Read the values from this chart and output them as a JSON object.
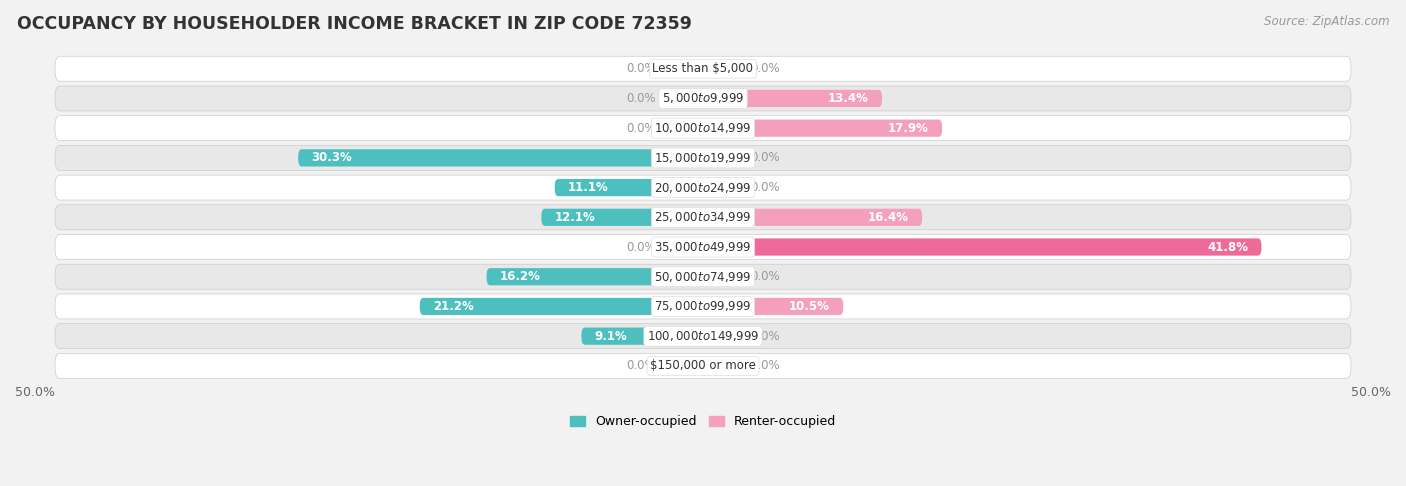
{
  "title": "OCCUPANCY BY HOUSEHOLDER INCOME BRACKET IN ZIP CODE 72359",
  "source": "Source: ZipAtlas.com",
  "categories": [
    "Less than $5,000",
    "$5,000 to $9,999",
    "$10,000 to $14,999",
    "$15,000 to $19,999",
    "$20,000 to $24,999",
    "$25,000 to $34,999",
    "$35,000 to $49,999",
    "$50,000 to $74,999",
    "$75,000 to $99,999",
    "$100,000 to $149,999",
    "$150,000 or more"
  ],
  "owner_values": [
    0.0,
    0.0,
    0.0,
    30.3,
    11.1,
    12.1,
    0.0,
    16.2,
    21.2,
    9.1,
    0.0
  ],
  "renter_values": [
    0.0,
    13.4,
    17.9,
    0.0,
    0.0,
    16.4,
    41.8,
    0.0,
    10.5,
    0.0,
    0.0
  ],
  "owner_color": "#4DBFBF",
  "renter_color_normal": "#F4A0BC",
  "renter_color_strong": "#EE6B99",
  "bar_height": 0.58,
  "xlim": 50.0,
  "background_color": "#f2f2f2",
  "row_bg_light": "#ffffff",
  "row_bg_dark": "#e8e8e8",
  "label_color_inside": "#ffffff",
  "label_color_outside": "#888888",
  "title_fontsize": 12.5,
  "source_fontsize": 8.5,
  "label_fontsize": 8.5,
  "category_fontsize": 8.5,
  "axis_label_fontsize": 9,
  "legend_fontsize": 9
}
